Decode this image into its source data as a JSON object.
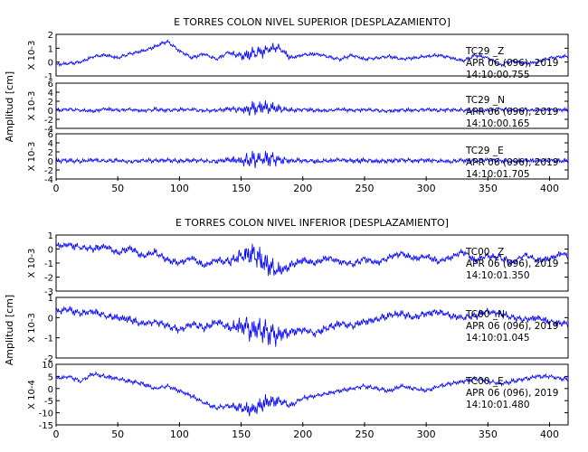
{
  "chart_data": [
    {
      "type": "line",
      "title": "E TORRES COLON NIVEL SUPERIOR [DESPLAZAMIENTO]",
      "ylabel": "Amplitud [cm]",
      "xlim": [
        0,
        415
      ],
      "xticks": [
        0,
        50,
        100,
        150,
        200,
        250,
        300,
        350,
        400
      ],
      "line_color": "#0000ff",
      "traces": [
        {
          "name": "TC29 _Z",
          "scale_label": "X 10-3",
          "date": "APR 06 (096), 2019",
          "time": "14:10:00.755",
          "ylim": [
            -1,
            2
          ],
          "yticks": [
            -1,
            0,
            1,
            2
          ],
          "x": [
            0,
            10,
            20,
            30,
            40,
            50,
            60,
            70,
            80,
            90,
            100,
            110,
            120,
            130,
            140,
            150,
            160,
            170,
            180,
            190,
            200,
            210,
            220,
            230,
            240,
            250,
            260,
            270,
            280,
            290,
            300,
            310,
            320,
            330,
            340,
            350,
            360,
            370,
            380,
            390,
            400,
            410,
            415
          ],
          "values": [
            -0.2,
            -0.1,
            0.0,
            0.4,
            0.5,
            0.3,
            0.6,
            0.8,
            1.1,
            1.5,
            0.8,
            0.3,
            0.6,
            0.2,
            0.7,
            0.4,
            0.6,
            0.9,
            1.1,
            0.3,
            0.5,
            0.6,
            0.4,
            0.2,
            0.5,
            0.2,
            0.3,
            0.4,
            0.2,
            0.3,
            0.4,
            0.5,
            0.3,
            0.1,
            0.5,
            0.3,
            -0.2,
            0.1,
            -0.1,
            0.0,
            0.3,
            0.4,
            0.4
          ],
          "noise": 0.5
        },
        {
          "name": "TC29 _N",
          "scale_label": "X 10-3",
          "date": "APR 06 (096), 2019",
          "time": "14:10:00.165",
          "ylim": [
            -4,
            6
          ],
          "yticks": [
            -4,
            -2,
            0,
            2,
            4,
            6
          ],
          "x": [
            0,
            10,
            20,
            30,
            40,
            50,
            60,
            70,
            80,
            90,
            100,
            110,
            120,
            130,
            140,
            150,
            160,
            170,
            180,
            190,
            200,
            210,
            220,
            230,
            240,
            250,
            260,
            270,
            280,
            290,
            300,
            310,
            320,
            330,
            340,
            350,
            360,
            370,
            380,
            390,
            400,
            410,
            415
          ],
          "values": [
            0.0,
            0.2,
            0.0,
            -0.2,
            0.3,
            0.0,
            0.2,
            -0.1,
            0.2,
            0.0,
            0.1,
            0.2,
            -0.1,
            0.0,
            0.3,
            0.1,
            0.5,
            0.8,
            0.3,
            0.0,
            0.2,
            0.0,
            -0.1,
            0.2,
            0.0,
            0.1,
            0.0,
            -0.2,
            0.1,
            0.0,
            0.2,
            0.0,
            0.1,
            0.0,
            -0.1,
            0.0,
            0.2,
            0.0,
            0.1,
            0.0,
            0.2,
            0.1,
            0.0
          ],
          "noise": 1.6
        },
        {
          "name": "TC29 _E",
          "scale_label": "X 10-3",
          "date": "APR 06 (096), 2019",
          "time": "14:10:01.705",
          "ylim": [
            -4,
            6
          ],
          "yticks": [
            -4,
            -2,
            0,
            2,
            4,
            6
          ],
          "x": [
            0,
            10,
            20,
            30,
            40,
            50,
            60,
            70,
            80,
            90,
            100,
            110,
            120,
            130,
            140,
            150,
            160,
            170,
            180,
            190,
            200,
            210,
            220,
            230,
            240,
            250,
            260,
            270,
            280,
            290,
            300,
            310,
            320,
            330,
            340,
            350,
            360,
            370,
            380,
            390,
            400,
            410,
            415
          ],
          "values": [
            0.0,
            0.1,
            -0.1,
            0.2,
            0.0,
            0.1,
            -0.2,
            0.1,
            0.0,
            0.2,
            0.0,
            0.1,
            0.0,
            -0.1,
            0.2,
            0.0,
            0.3,
            0.5,
            0.2,
            0.0,
            0.1,
            -0.1,
            0.0,
            0.2,
            0.0,
            0.1,
            -0.1,
            0.0,
            0.2,
            0.0,
            0.1,
            0.0,
            -0.1,
            0.1,
            0.0,
            0.2,
            0.0,
            -0.1,
            0.1,
            0.0,
            0.1,
            0.0,
            0.0
          ],
          "noise": 1.9
        }
      ]
    },
    {
      "type": "line",
      "title": "E TORRES COLON NIVEL INFERIOR [DESPLAZAMIENTO]",
      "ylabel": "Amplitud [cm]",
      "xlim": [
        0,
        415
      ],
      "xticks": [
        0,
        50,
        100,
        150,
        200,
        250,
        300,
        350,
        400
      ],
      "line_color": "#0000ff",
      "traces": [
        {
          "name": "TC00 _Z",
          "scale_label": "X 10-3",
          "date": "APR 06 (096), 2019",
          "time": "14:10:01.350",
          "ylim": [
            -3,
            1
          ],
          "yticks": [
            -3,
            -2,
            -1,
            0,
            1
          ],
          "x": [
            0,
            10,
            20,
            30,
            40,
            50,
            60,
            70,
            80,
            90,
            100,
            110,
            120,
            130,
            140,
            150,
            160,
            170,
            180,
            190,
            200,
            210,
            220,
            230,
            240,
            250,
            260,
            270,
            280,
            290,
            300,
            310,
            320,
            330,
            340,
            350,
            360,
            370,
            380,
            390,
            400,
            410,
            415
          ],
          "values": [
            0.2,
            0.3,
            0.1,
            0.0,
            0.2,
            -0.3,
            0.1,
            -0.5,
            -0.2,
            -0.8,
            -1.0,
            -0.6,
            -1.2,
            -0.8,
            -0.9,
            -0.5,
            -0.3,
            -1.0,
            -1.6,
            -1.2,
            -0.8,
            -1.0,
            -0.6,
            -0.9,
            -1.1,
            -0.7,
            -1.0,
            -0.6,
            -0.3,
            -0.7,
            -0.5,
            -0.9,
            -0.6,
            -0.2,
            -0.8,
            -0.5,
            -0.6,
            -1.0,
            -0.4,
            -0.8,
            -0.7,
            -0.3,
            -0.5
          ],
          "noise": 0.9
        },
        {
          "name": "TC00 _N",
          "scale_label": "X 10-3",
          "date": "APR 06 (096), 2019",
          "time": "14:10:01.045",
          "ylim": [
            -2,
            1
          ],
          "yticks": [
            -2,
            -1,
            0,
            1
          ],
          "x": [
            0,
            10,
            20,
            30,
            40,
            50,
            60,
            70,
            80,
            90,
            100,
            110,
            120,
            130,
            140,
            150,
            160,
            170,
            180,
            190,
            200,
            210,
            220,
            230,
            240,
            250,
            260,
            270,
            280,
            290,
            300,
            310,
            320,
            330,
            340,
            350,
            360,
            370,
            380,
            390,
            400,
            410,
            415
          ],
          "values": [
            0.3,
            0.4,
            0.2,
            0.3,
            0.1,
            0.0,
            -0.1,
            -0.3,
            -0.2,
            -0.4,
            -0.6,
            -0.3,
            -0.5,
            -0.2,
            -0.5,
            -0.4,
            -0.6,
            -0.7,
            -0.9,
            -0.7,
            -0.6,
            -0.8,
            -0.5,
            -0.3,
            -0.4,
            -0.2,
            -0.1,
            0.1,
            0.2,
            0.0,
            0.2,
            0.3,
            0.1,
            0.0,
            0.1,
            0.3,
            0.2,
            0.0,
            -0.1,
            0.0,
            -0.2,
            -0.3,
            -0.3
          ],
          "noise": 0.7
        },
        {
          "name": "TC00 _E",
          "scale_label": "X 10-4",
          "date": "APR 06 (096), 2019",
          "time": "14:10:01.480",
          "ylim": [
            -15,
            10
          ],
          "yticks": [
            -15,
            -10,
            -5,
            0,
            5,
            10
          ],
          "x": [
            0,
            10,
            20,
            30,
            40,
            50,
            60,
            70,
            80,
            90,
            100,
            110,
            120,
            130,
            140,
            150,
            160,
            170,
            180,
            190,
            200,
            210,
            220,
            230,
            240,
            250,
            260,
            270,
            280,
            290,
            300,
            310,
            320,
            330,
            340,
            350,
            360,
            370,
            380,
            390,
            400,
            410,
            415
          ],
          "values": [
            4,
            5,
            3,
            6,
            5,
            4,
            3,
            2,
            0,
            1,
            -1,
            -3,
            -6,
            -8,
            -7,
            -8,
            -9,
            -6,
            -5,
            -7,
            -4,
            -3,
            -2,
            -1,
            0,
            1,
            0,
            -1,
            1,
            0,
            -1,
            1,
            2,
            3,
            4,
            3,
            2,
            3,
            4,
            5,
            5,
            4,
            4
          ],
          "noise": 3.5
        }
      ]
    }
  ]
}
